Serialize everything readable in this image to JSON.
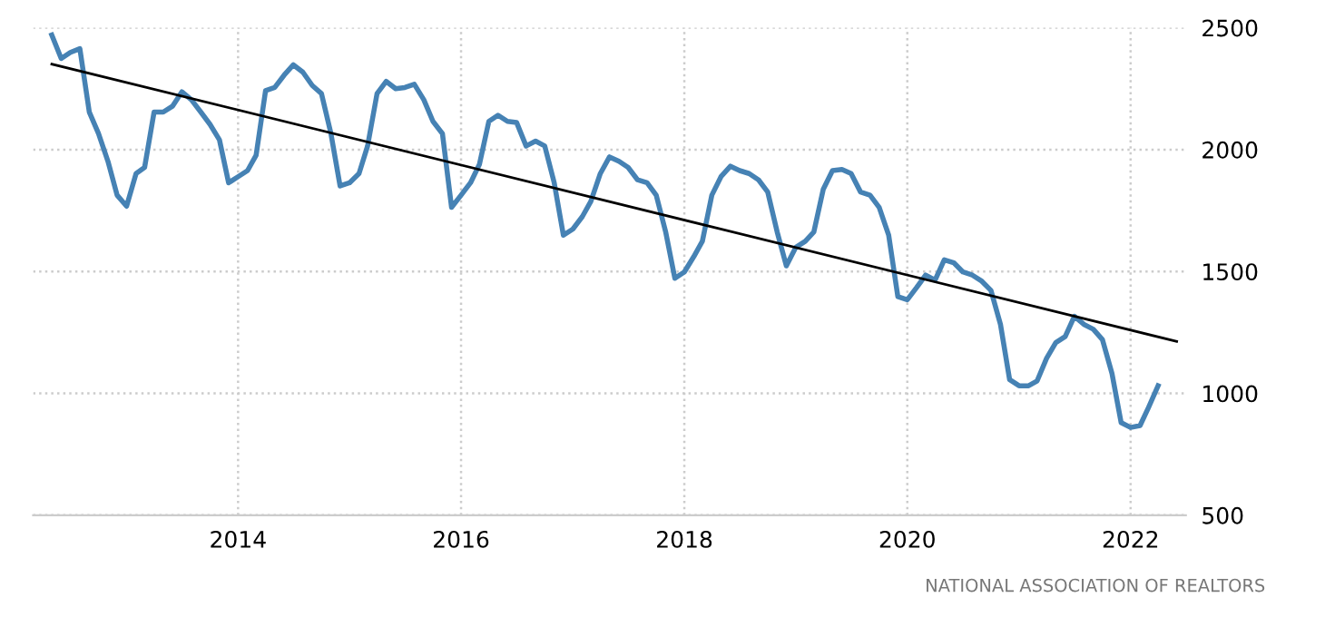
{
  "chart_data": {
    "type": "line",
    "x": [
      "2012-05",
      "2012-06",
      "2012-07",
      "2012-08",
      "2012-09",
      "2012-10",
      "2012-11",
      "2012-12",
      "2013-01",
      "2013-02",
      "2013-03",
      "2013-04",
      "2013-05",
      "2013-06",
      "2013-07",
      "2013-08",
      "2013-09",
      "2013-10",
      "2013-11",
      "2013-12",
      "2014-01",
      "2014-02",
      "2014-03",
      "2014-04",
      "2014-05",
      "2014-06",
      "2014-07",
      "2014-08",
      "2014-09",
      "2014-10",
      "2014-11",
      "2014-12",
      "2015-01",
      "2015-02",
      "2015-03",
      "2015-04",
      "2015-05",
      "2015-06",
      "2015-07",
      "2015-08",
      "2015-09",
      "2015-10",
      "2015-11",
      "2015-12",
      "2016-01",
      "2016-02",
      "2016-03",
      "2016-04",
      "2016-05",
      "2016-06",
      "2016-07",
      "2016-08",
      "2016-09",
      "2016-10",
      "2016-11",
      "2016-12",
      "2017-01",
      "2017-02",
      "2017-03",
      "2017-04",
      "2017-05",
      "2017-06",
      "2017-07",
      "2017-08",
      "2017-09",
      "2017-10",
      "2017-11",
      "2017-12",
      "2018-01",
      "2018-02",
      "2018-03",
      "2018-04",
      "2018-05",
      "2018-06",
      "2018-07",
      "2018-08",
      "2018-09",
      "2018-10",
      "2018-11",
      "2018-12",
      "2019-01",
      "2019-02",
      "2019-03",
      "2019-04",
      "2019-05",
      "2019-06",
      "2019-07",
      "2019-08",
      "2019-09",
      "2019-10",
      "2019-11",
      "2019-12",
      "2020-01",
      "2020-02",
      "2020-03",
      "2020-04",
      "2020-05",
      "2020-06",
      "2020-07",
      "2020-08",
      "2020-09",
      "2020-10",
      "2020-11",
      "2020-12",
      "2021-01",
      "2021-02",
      "2021-03",
      "2021-04",
      "2021-05",
      "2021-06",
      "2021-07",
      "2021-08",
      "2021-09",
      "2021-10",
      "2021-11",
      "2021-12",
      "2022-01",
      "2022-02",
      "2022-03",
      "2022-04"
    ],
    "series": [
      {
        "color": "#4682b4",
        "values": [
          2470,
          2374,
          2399,
          2414,
          2154,
          2066,
          1952,
          1813,
          1768,
          1902,
          1927,
          2154,
          2154,
          2179,
          2237,
          2205,
          2154,
          2104,
          2040,
          1864,
          1889,
          1914,
          1977,
          2242,
          2255,
          2306,
          2348,
          2318,
          2263,
          2230,
          2066,
          1851,
          1864,
          1902,
          2015,
          2230,
          2280,
          2250,
          2255,
          2268,
          2205,
          2116,
          2066,
          1763,
          1813,
          1864,
          1939,
          2116,
          2141,
          2116,
          2111,
          2015,
          2035,
          2015,
          1864,
          1649,
          1674,
          1725,
          1788,
          1902,
          1970,
          1952,
          1927,
          1876,
          1864,
          1813,
          1662,
          1472,
          1498,
          1561,
          1624,
          1813,
          1889,
          1932,
          1914,
          1902,
          1876,
          1826,
          1662,
          1523,
          1599,
          1624,
          1662,
          1838,
          1914,
          1919,
          1902,
          1826,
          1813,
          1763,
          1649,
          1397,
          1384,
          1435,
          1485,
          1465,
          1548,
          1536,
          1498,
          1485,
          1460,
          1422,
          1283,
          1056,
          1031,
          1031,
          1051,
          1144,
          1208,
          1233,
          1316,
          1283,
          1263,
          1220,
          1082,
          880,
          860,
          868,
          943,
          1031
        ]
      },
      {
        "type": "line",
        "color": "#000000",
        "x": [
          "2012-05",
          "2022-06"
        ],
        "values": [
          2351,
          1213
        ]
      }
    ],
    "xlim": [
      "2012-03",
      "2022-07"
    ],
    "xticks": [
      {
        "value": "2014",
        "label": "2014"
      },
      {
        "value": "2016",
        "label": "2016"
      },
      {
        "value": "2018",
        "label": "2018"
      },
      {
        "value": "2020",
        "label": "2020"
      },
      {
        "value": "2022",
        "label": "2022"
      }
    ],
    "ylim": [
      500,
      2500
    ],
    "yticks": [
      500,
      1000,
      1500,
      2000,
      2500
    ],
    "grid": true,
    "annotations": [
      "NATIONAL ASSOCIATION OF REALTORS"
    ]
  }
}
